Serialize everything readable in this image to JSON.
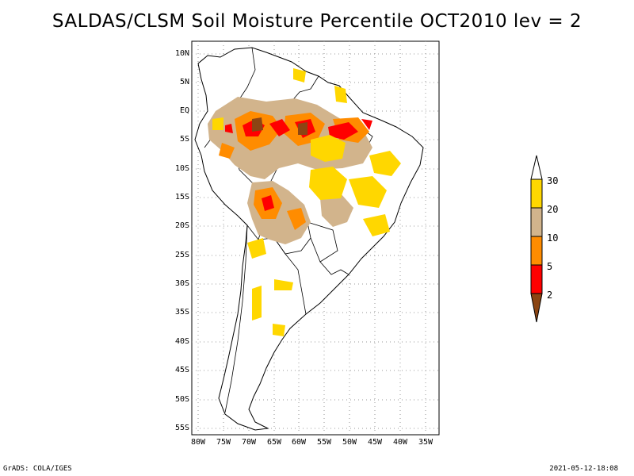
{
  "title": "SALDAS/CLSM Soil Moisture Percentile OCT2010 lev = 2",
  "map": {
    "region": "South America",
    "lat_labels": [
      "10N",
      "5N",
      "EQ",
      "5S",
      "10S",
      "15S",
      "20S",
      "25S",
      "30S",
      "35S",
      "40S",
      "45S",
      "50S",
      "55S"
    ],
    "lon_labels": [
      "80W",
      "75W",
      "70W",
      "65W",
      "60W",
      "55W",
      "50W",
      "45W",
      "40W",
      "35W"
    ]
  },
  "colorbar": {
    "labels": [
      "30",
      "20",
      "10",
      "5",
      "2"
    ],
    "colors": {
      "above_30": "#ffffff",
      "20_30": "#ffd700",
      "10_20": "#d2b48c",
      "5_10": "#ff8c00",
      "2_5": "#ff0000",
      "below_2": "#8b4513"
    }
  },
  "footer": {
    "left": "GrADS: COLA/IGES",
    "right": "2021-05-12-18:08"
  }
}
